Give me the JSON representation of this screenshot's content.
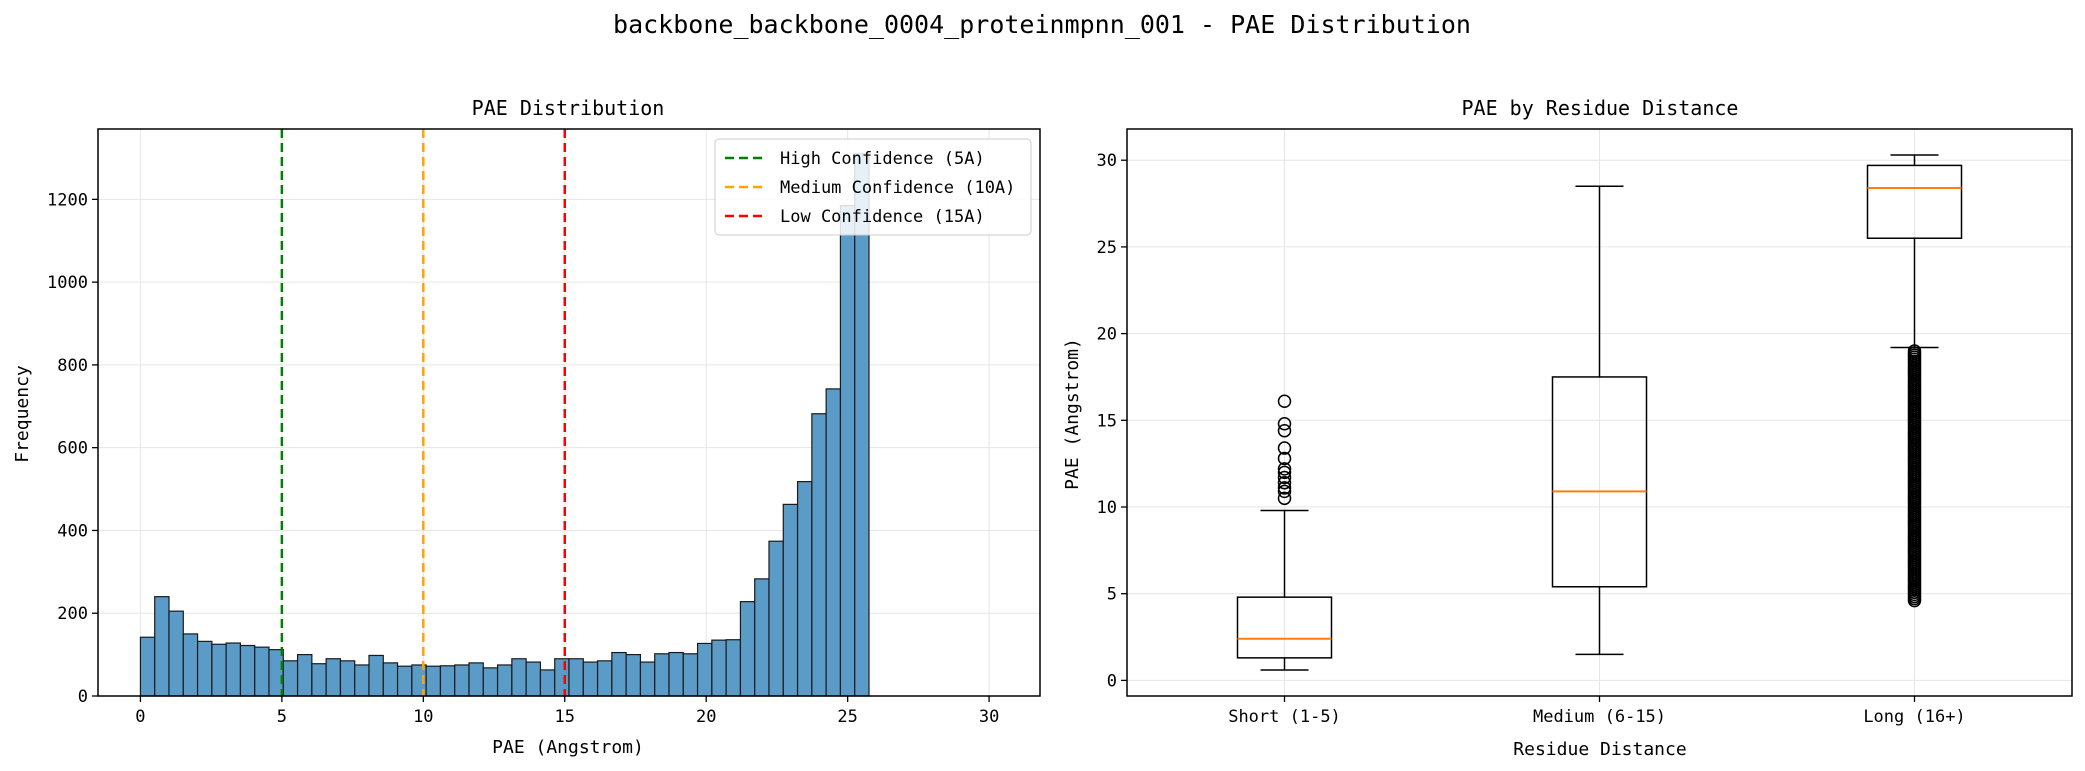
{
  "suptitle": "backbone_backbone_0004_proteinmpnn_001 - PAE Distribution",
  "chart_data": [
    {
      "type": "histogram",
      "title": "PAE Distribution",
      "xlabel": "PAE (Angstrom)",
      "ylabel": "Frequency",
      "xlim": [
        -1.5,
        31.8
      ],
      "ylim": [
        0,
        1370
      ],
      "xticks": [
        0,
        5,
        10,
        15,
        20,
        25,
        30
      ],
      "yticks": [
        0,
        200,
        400,
        600,
        800,
        1000,
        1200
      ],
      "grid": true,
      "bar_color": "#5b9bc8",
      "bins_start": 0.0,
      "bin_width": 0.505,
      "values": [
        142,
        240,
        205,
        150,
        132,
        125,
        128,
        122,
        118,
        112,
        85,
        100,
        78,
        90,
        85,
        75,
        98,
        80,
        72,
        75,
        72,
        73,
        75,
        80,
        68,
        75,
        90,
        82,
        63,
        90,
        90,
        82,
        85,
        105,
        100,
        82,
        102,
        105,
        102,
        127,
        135,
        136,
        228,
        283,
        374,
        463,
        518,
        682,
        742,
        1185,
        1310
      ],
      "reference_lines": [
        {
          "x": 5,
          "label": "High Confidence (5A)",
          "color": "#008000"
        },
        {
          "x": 10,
          "label": "Medium Confidence (10A)",
          "color": "#ffa500"
        },
        {
          "x": 15,
          "label": "Low Confidence (15A)",
          "color": "#ff0000"
        }
      ],
      "legend_position": "top-right"
    },
    {
      "type": "boxplot",
      "title": "PAE by Residue Distance",
      "xlabel": "Residue Distance",
      "ylabel": "PAE (Angstrom)",
      "ylim": [
        -0.9,
        31.8
      ],
      "yticks": [
        0,
        5,
        10,
        15,
        20,
        25,
        30
      ],
      "grid": true,
      "median_color": "#ff7f0e",
      "categories": [
        "Short (1-5)",
        "Medium (6-15)",
        "Long (16+)"
      ],
      "boxes": [
        {
          "whislo": 0.6,
          "q1": 1.3,
          "med": 2.4,
          "q3": 4.8,
          "whishi": 9.8,
          "fliers": [
            10.5,
            10.9,
            11.1,
            11.4,
            11.7,
            12.0,
            12.2,
            12.8,
            13.4,
            14.4,
            14.8,
            16.1
          ]
        },
        {
          "whislo": 1.5,
          "q1": 5.4,
          "med": 10.9,
          "q3": 17.5,
          "whishi": 28.5,
          "fliers": []
        },
        {
          "whislo": 19.2,
          "q1": 25.5,
          "med": 28.4,
          "q3": 29.7,
          "whishi": 30.3,
          "fliers_range": [
            4.6,
            19.0
          ]
        }
      ]
    }
  ]
}
